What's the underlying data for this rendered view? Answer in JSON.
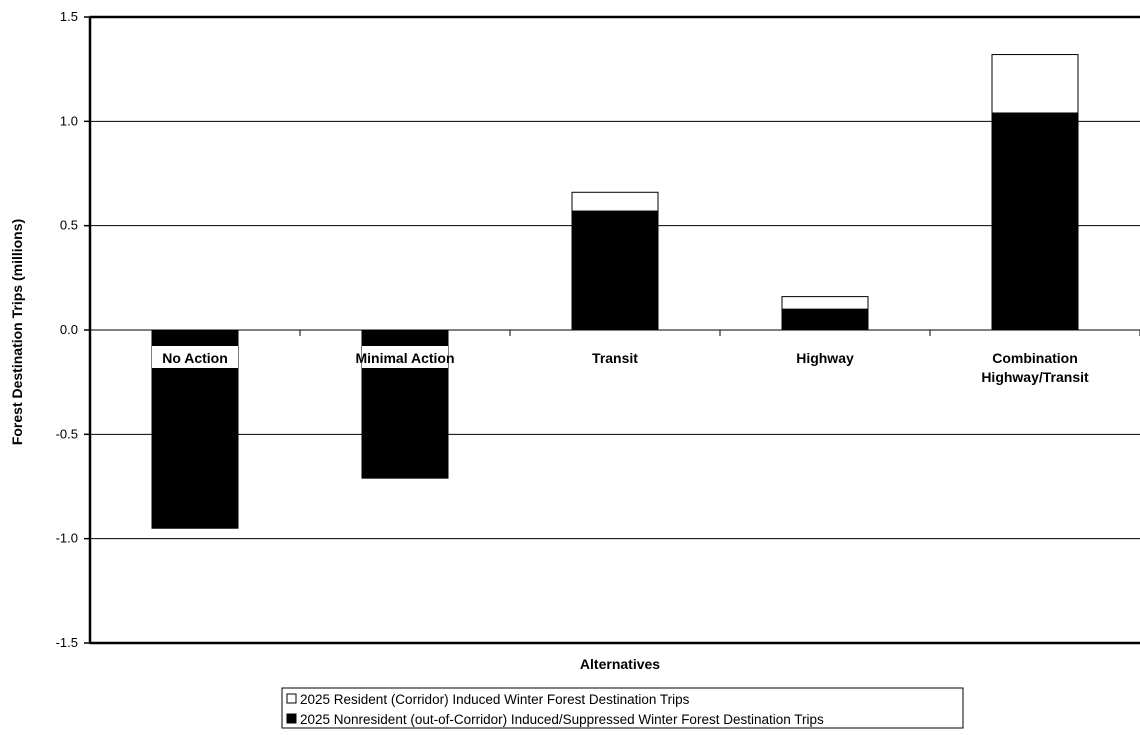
{
  "chart_data": {
    "type": "bar",
    "stacked": true,
    "categories": [
      [
        "No Action"
      ],
      [
        "Minimal Action"
      ],
      [
        "Transit"
      ],
      [
        "Highway"
      ],
      [
        "Combination",
        "Highway/Transit"
      ]
    ],
    "series": [
      {
        "name": "2025 Nonresident (out-of-Corridor) Induced/Suppressed Winter Forest Destination Trips",
        "color": "#000000",
        "values": [
          -0.95,
          -0.71,
          0.57,
          0.1,
          1.04
        ]
      },
      {
        "name": "2025 Resident (Corridor) Induced Winter Forest Destination Trips",
        "color": "#ffffff",
        "values": [
          0.0,
          0.0,
          0.09,
          0.06,
          0.28
        ]
      }
    ],
    "xlabel": "Alternatives",
    "ylabel": "Forest Destination Trips (millions)",
    "ylim": [
      -1.5,
      1.5
    ],
    "yticks": [
      "-1.5",
      "-1.0",
      "-0.5",
      "0.0",
      "0.5",
      "1.0",
      "1.5"
    ],
    "grid": true,
    "legend_position": "bottom",
    "legend_order": [
      1,
      0
    ]
  }
}
